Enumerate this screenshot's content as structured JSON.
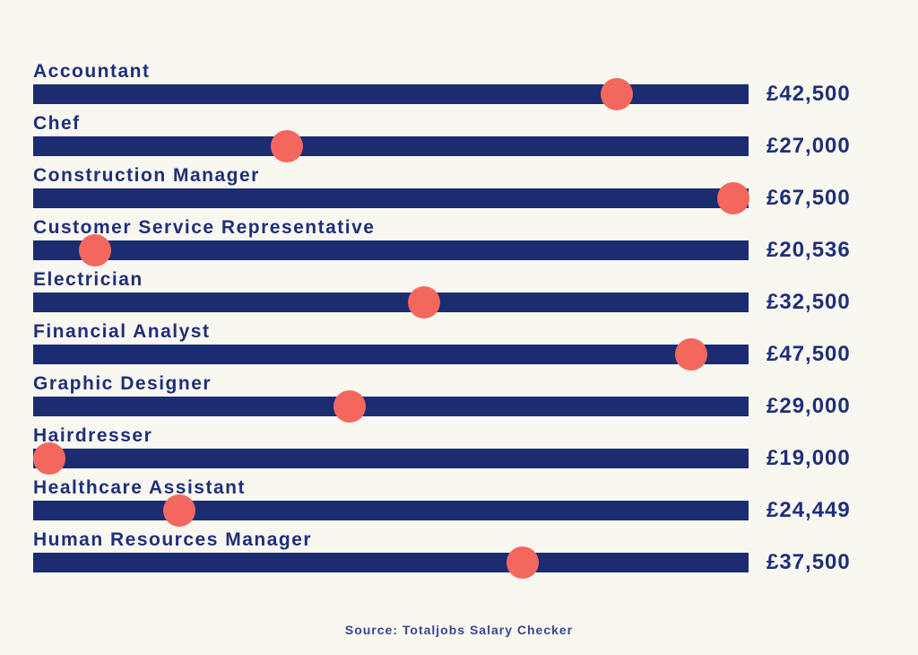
{
  "chart_data": {
    "type": "bar",
    "title": "",
    "categories": [
      "Accountant",
      "Chef",
      "Construction Manager",
      "Customer Service Representative",
      "Electrician",
      "Financial Analyst",
      "Graphic Designer",
      "Hairdresser",
      "Healthcare Assistant",
      "Human Resources Manager"
    ],
    "values": [
      42500,
      27000,
      67500,
      20536,
      32500,
      47500,
      29000,
      19000,
      24449,
      37500
    ],
    "value_labels": [
      "£42,500",
      "£27,000",
      "£67,500",
      "£20,536",
      "£32,500",
      "£47,500",
      "£29,000",
      "£19,000",
      "£24,449",
      "£37,500"
    ],
    "dot_fractions": [
      0.816,
      0.355,
      0.979,
      0.086,
      0.546,
      0.92,
      0.442,
      0.023,
      0.204,
      0.684
    ],
    "ylabel": "",
    "xlabel": "",
    "legend": "none",
    "grid": false,
    "colors": {
      "background": "#f8f7f0",
      "bar": "#1b2c71",
      "dot": "#f4675f",
      "text": "#1f2f7a"
    },
    "source": "Source: Totaljobs Salary Checker"
  },
  "footer": {
    "source": "Source: Totaljobs Salary Checker"
  }
}
